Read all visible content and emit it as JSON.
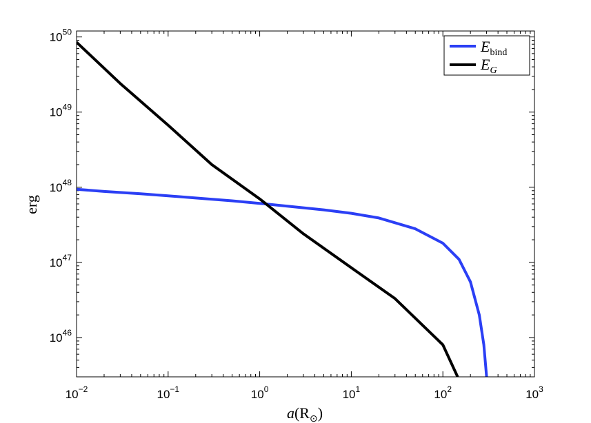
{
  "chart_data": {
    "type": "line",
    "xlabel_main": "a",
    "xlabel_unit": "(R",
    "xlabel_sub": "⊙",
    "xlabel_close": ")",
    "ylabel": "erg",
    "xscale": "log",
    "yscale": "log",
    "xlim": [
      0.01,
      1000
    ],
    "ylim": [
      3e+45,
      1.2e+50
    ],
    "grid": false,
    "legend_position": "top-right",
    "x_ticks": [
      {
        "base": "10",
        "exp": "−2",
        "value": 0.01
      },
      {
        "base": "10",
        "exp": "−1",
        "value": 0.1
      },
      {
        "base": "10",
        "exp": "0",
        "value": 1
      },
      {
        "base": "10",
        "exp": "1",
        "value": 10
      },
      {
        "base": "10",
        "exp": "2",
        "value": 100
      },
      {
        "base": "10",
        "exp": "3",
        "value": 1000
      }
    ],
    "y_ticks": [
      {
        "base": "10",
        "exp": "46",
        "value": 1e+46
      },
      {
        "base": "10",
        "exp": "47",
        "value": 1e+47
      },
      {
        "base": "10",
        "exp": "48",
        "value": 1e+48
      },
      {
        "base": "10",
        "exp": "49",
        "value": 1e+49
      },
      {
        "base": "10",
        "exp": "50",
        "value": 1e+50
      }
    ],
    "series": [
      {
        "name_main": "E",
        "name_sub": "bind",
        "color": "#2b3ff5",
        "points": [
          [
            0.01,
            9.4e+47
          ],
          [
            0.02,
            8.8e+47
          ],
          [
            0.05,
            8.2e+47
          ],
          [
            0.1,
            7.7e+47
          ],
          [
            0.2,
            7.2e+47
          ],
          [
            0.5,
            6.6e+47
          ],
          [
            1,
            6.1e+47
          ],
          [
            2,
            5.6e+47
          ],
          [
            5,
            5e+47
          ],
          [
            10,
            4.5e+47
          ],
          [
            20,
            3.9e+47
          ],
          [
            50,
            2.8e+47
          ],
          [
            100,
            1.8e+47
          ],
          [
            150,
            1.1e+47
          ],
          [
            200,
            5.5e+46
          ],
          [
            250,
            2e+46
          ],
          [
            280,
            8e+45
          ],
          [
            300,
            3e+45
          ]
        ]
      },
      {
        "name_main": "E",
        "name_sub": "G",
        "color": "#000000",
        "points": [
          [
            0.01,
            8.5e+49
          ],
          [
            0.03,
            2.4e+49
          ],
          [
            0.1,
            6.7e+48
          ],
          [
            0.3,
            2e+48
          ],
          [
            1,
            7e+47
          ],
          [
            3,
            2.4e+47
          ],
          [
            10,
            8.5e+46
          ],
          [
            30,
            3.3e+46
          ],
          [
            100,
            8e+45
          ],
          [
            145,
            3e+45
          ]
        ]
      }
    ]
  }
}
